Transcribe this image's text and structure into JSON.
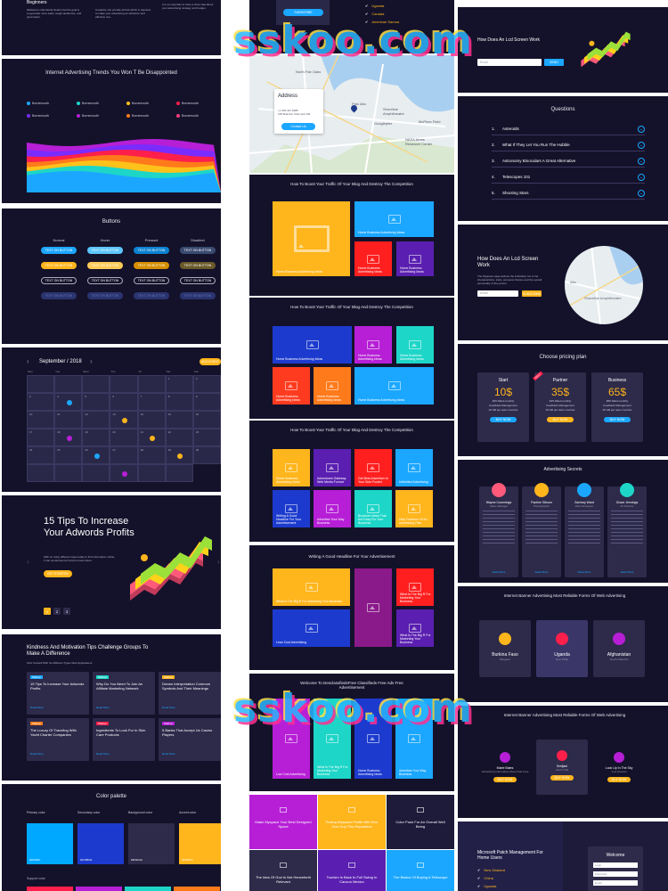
{
  "watermark": "sskoo.com",
  "intro": {
    "beginners": "Beginners",
    "p1": "Marketers understand clearly that the goal is to generate more sales, target audiences, and grow faster.",
    "p2": "Creativity can provide all that which is required to make your advertising an attractive and effective one.",
    "p3": "It is so important to have a clear idea about your advertising strategy and budget."
  },
  "trends": {
    "title": "Internet Advertising Trends You Won T Be Disappointed",
    "legend": [
      "Bornemouth",
      "Bornemouth",
      "Bornemouth",
      "Bornemouth",
      "Bornemouth",
      "Bornemouth",
      "Bornemouth",
      "Bornemouth"
    ],
    "colors": [
      "#1ba7ff",
      "#1dd6c8",
      "#ffc21a",
      "#ff1f4b",
      "#7a2cff",
      "#b61fd6",
      "#ff7a1a",
      "#ff3b7a"
    ]
  },
  "buttons": {
    "title": "Buttons",
    "states": [
      "Normal",
      "Hover",
      "Pressed",
      "Disabled"
    ],
    "label": "TEXT ON BUTTON"
  },
  "calendar": {
    "month": "September / 2018",
    "days": [
      "Mon",
      "Tue",
      "Wed",
      "Thu",
      "Fri",
      "Sat",
      "Sun"
    ],
    "nums": [
      "",
      "",
      "",
      "",
      "",
      "1",
      "2",
      "3",
      "4",
      "5",
      "6",
      "7",
      "8",
      "9",
      "10",
      "11",
      "12",
      "13",
      "14",
      "15",
      "16",
      "17",
      "18",
      "19",
      "20",
      "21",
      "22",
      "23",
      "24",
      "25",
      "26",
      "27",
      "28",
      "29",
      "30",
      "",
      "",
      "",
      "",
      "",
      ""
    ],
    "add": "ADD EVENT"
  },
  "tips": {
    "title": "15 Tips To Increase Your Adwords Profits",
    "body": "With so many different ways today to find information online, it can sometimes be hard to know where.",
    "cta": "GET STARTED",
    "pages": [
      "1",
      "2",
      "3"
    ]
  },
  "kindness": {
    "title": "Kindness And Motivation Tips Challenge Groups To Make A Difference",
    "sub": "Find Yourself With So Different Types Web Applications",
    "cards": [
      {
        "tag": "Startup",
        "title": "15 Tips To Increase Your Adwords Profits"
      },
      {
        "tag": "Startup",
        "title": "Why Do You Need To Join An Affiliate Marketing Network"
      },
      {
        "tag": "Startup",
        "title": "Dream Interpretation Common Symbols And Their Meanings"
      },
      {
        "tag": "Startup",
        "title": "The Luxury Of Traveling With Yacht Charter Companies"
      },
      {
        "tag": "Startup",
        "title": "Ingredients To Look For In Skin Care Products"
      },
      {
        "tag": "Startup",
        "title": "5 Banks That Accept Us Casino Players"
      }
    ],
    "more": "Read More"
  },
  "palette": {
    "title": "Color palette",
    "labels": [
      "Primary color",
      "Secondary color",
      "Background color",
      "Accent color"
    ],
    "hex": [
      "#00A9FF",
      "#1C3BCE",
      "#2D2A4A",
      "#FFB51C"
    ],
    "support": "Support color"
  },
  "top_list": {
    "items": [
      "Uganda",
      "Canada",
      "American Samoa"
    ],
    "btn": "SUBSCRIBE"
  },
  "address": {
    "title": "Address",
    "line1": "+1 909 427 6085",
    "line2": "168 Brandon Tolar Aptt 166",
    "btn": "Contact Us",
    "map_labels": [
      "North Fair Oaks",
      "Stanford",
      "Palo Alto",
      "Shoreline Amphitheatre",
      "Googleplex",
      "McPhee Field",
      "NASA Ames Research Center"
    ]
  },
  "boost1": {
    "title": "How To Boost Your Traffic Of Your Blog And Destroy The Competition",
    "tiles": [
      "Home Business Advertising Ideas",
      "Home Business Advertising Ideas",
      "Home Business Advertising Ideas",
      "Home Business Advertising Ideas"
    ]
  },
  "boost2": {
    "title": "How To Boost Your Traffic Of Your Blog And Destroy The Competition",
    "tiles": [
      "Home Business Advertising Ideas",
      "Home Business Advertising Ideas",
      "Home Business Advertising Ideas",
      "Home Business Advertising Ideas",
      "Home Business Advertising Ideas",
      "Home Business Advertising Ideas"
    ]
  },
  "boost3": {
    "title": "How To Boost Your Traffic Of Your Blog And Destroy The Competition",
    "tiles": [
      "Home Business Advertising Ideas",
      "Adventures Gateway Web Media Format",
      "Get Best Advertiser In Your Side Pocket",
      "Unlimited Advertising",
      "Writing A Good Headline For Your Advertisement",
      "Advertise Your Way Business",
      "Brochure Ideas That Are Easy For Your Business",
      "Help Features Of An Advertising Plan"
    ]
  },
  "headline": {
    "title": "Writing A Good Headline For Your Advertisement",
    "tiles": [
      "What Is The Big R For Marketing Your Business",
      "What Is The Big R For Marketing Your Business",
      "Lean Cost Advertising",
      "What Is The Big R For Marketing Your Business"
    ]
  },
  "classified": {
    "title": "Welcome To DesclassfiedsFree Classifieds Free Ads Free Advertisement",
    "tiles": [
      "Low Cost Advertising",
      "What Is The Big R For Marketing Your Business",
      "Home Business Advertising Ideas",
      "Advertise Your Way Business"
    ]
  },
  "bottom_mid": {
    "tiles": [
      "Make Myspace Your Best Designed Space",
      "Pricing Myspace Profile Will Give Your Guy This Reputation",
      "Color Push For An Overall Well Being",
      "The Idea Of God Is Not Henceforth Relevant",
      "Tourism Is Back In Full Swing In Cancun Mexico",
      "The Basics Of Buying A Telescope"
    ]
  },
  "lcd1": {
    "title": "How Does An Lcd Screen Work",
    "placeholder": "Email",
    "btn": "SEND"
  },
  "questions": {
    "title": "Questions",
    "items": [
      "Asteroids",
      "What If They Let You Run The Hubble",
      "Astronomy Binoculars A Great Alternative",
      "Telescopes 101",
      "Shooting Stars"
    ],
    "nums": [
      "1.",
      "2.",
      "3.",
      "4.",
      "5."
    ]
  },
  "lcd2": {
    "title": "How Does An Lcd Screen Work",
    "body": "The Myspace page defines the individual, his or her characteristics, traits, personal choices and the overall personality of the person.",
    "placeholder": "Email",
    "btn": "SUBSCRIBE",
    "map_labels": [
      "Alto",
      "Shoreline Amphitheatre"
    ]
  },
  "pricing": {
    "title": "Choose pricing plan",
    "plans": [
      {
        "name": "Start",
        "price": "10$",
        "f1": "$15 billed monthly",
        "f2": "Feedback Management",
        "f3": "10 GB per team member",
        "btn": "BUY NOW"
      },
      {
        "name": "Partner",
        "price": "35$",
        "f1": "$15 billed monthly",
        "f2": "Feedback Management",
        "f3": "15 GB per team member",
        "btn": "BUY NOW",
        "ribbon": "BEST"
      },
      {
        "name": "Business",
        "price": "65$",
        "f1": "$65 billed monthly",
        "f2": "Feedback Management",
        "f3": "25 GB per team member",
        "btn": "BUY NOW"
      }
    ]
  },
  "secrets": {
    "title": "Advertising Secrets",
    "people": [
      {
        "name": "Wayne Cummings",
        "role": "Sales Manager",
        "color": "#ff5a7a"
      },
      {
        "name": "Pauline Gibson",
        "role": "Photographer",
        "color": "#ffb51c"
      },
      {
        "name": "Zachary Ward",
        "role": "Web Developer",
        "color": "#1ba7ff"
      },
      {
        "name": "Grace Jennings",
        "role": "Art Director",
        "color": "#1dd6c8"
      }
    ],
    "more": "Read More"
  },
  "banner1": {
    "title": "Internet Banner Advertising Most Reliable Forms Of Web Advertising",
    "items": [
      {
        "name": "Burkina Faso",
        "sub": "Margaret",
        "color": "#ffb51c"
      },
      {
        "name": "Uganda",
        "sub": "New Philip",
        "color": "#ff1f4b"
      },
      {
        "name": "Afghanistan",
        "sub": "South Lillianfurt",
        "color": "#b61fd6"
      }
    ]
  },
  "banner2": {
    "title": "Internet Banner Advertising Most Reliable Forms Of Web Advertising",
    "items": [
      {
        "name": "Marie Bates",
        "sub": "Advertising Information About Kids Free",
        "color": "#b61fd6"
      },
      {
        "name": "Smiljani",
        "sub": "Acorn Grid",
        "color": "#ff1f4b"
      },
      {
        "name": "Look Up In The Sky",
        "sub": "Your Dreams",
        "color": "#b61fd6"
      }
    ],
    "btn": "BUY NOW"
  },
  "welcome": {
    "left_title": "Microsoft Patch Management For Home Users",
    "items": [
      "New Zealand",
      "China",
      "Uganda"
    ],
    "title": "Welcome",
    "f1": "Login",
    "f2": "Password",
    "f3": "Email"
  }
}
